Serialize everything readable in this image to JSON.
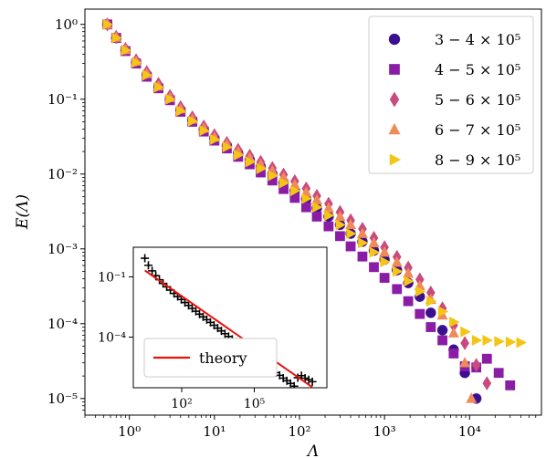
{
  "chart_data": [
    {
      "type": "scatter",
      "title": "",
      "xlabel": "Λ",
      "ylabel": "E(Λ)",
      "xscale": "log",
      "yscale": "log",
      "xlim": [
        0.3,
        70000
      ],
      "ylim": [
        6e-06,
        1.6
      ],
      "xticks": [
        {
          "value": 1,
          "label": "10⁰"
        },
        {
          "value": 10,
          "label": "10¹"
        },
        {
          "value": 100,
          "label": "10²"
        },
        {
          "value": 1000,
          "label": "10³"
        },
        {
          "value": 10000,
          "label": "10⁴"
        }
      ],
      "yticks": [
        {
          "value": 1,
          "label": "10⁰"
        },
        {
          "value": 0.1,
          "label": "10⁻¹"
        },
        {
          "value": 0.01,
          "label": "10⁻²"
        },
        {
          "value": 0.001,
          "label": "10⁻³"
        },
        {
          "value": 0.0001,
          "label": "10⁻⁴"
        },
        {
          "value": 1e-05,
          "label": "10⁻⁵"
        }
      ],
      "grid": false,
      "legend_position": "top-right",
      "series": [
        {
          "name": "3 − 4 × 10⁵",
          "marker": "circle",
          "color": "#3b0f8f",
          "x": [
            0.55,
            0.7,
            0.9,
            1.2,
            1.6,
            2.2,
            3,
            4,
            5.5,
            7.5,
            10,
            14,
            19,
            26,
            35,
            48,
            65,
            88,
            120,
            160,
            220,
            300,
            400,
            550,
            750,
            1000,
            1400,
            1900,
            2600,
            3500,
            4800,
            6500,
            8800,
            12000
          ],
          "y": [
            1.0,
            0.66,
            0.45,
            0.31,
            0.21,
            0.145,
            0.1,
            0.071,
            0.052,
            0.039,
            0.03,
            0.024,
            0.019,
            0.0155,
            0.0125,
            0.01,
            0.0078,
            0.006,
            0.0046,
            0.0035,
            0.0027,
            0.0021,
            0.0016,
            0.00125,
            0.00095,
            0.00072,
            0.00052,
            0.00035,
            0.00023,
            0.00014,
            8.2e-05,
            4.5e-05,
            2.2e-05,
            1e-05
          ]
        },
        {
          "name": "4 − 5 × 10⁵",
          "marker": "square",
          "color": "#8a1ca6",
          "x": [
            0.55,
            0.7,
            0.9,
            1.2,
            1.6,
            2.2,
            3,
            4,
            5.5,
            7.5,
            10,
            14,
            19,
            26,
            35,
            48,
            65,
            88,
            120,
            160,
            220,
            300,
            400,
            550,
            750,
            1000,
            1400,
            1900,
            2600,
            3500,
            4800,
            6500,
            8800,
            12000,
            16000,
            22000,
            30000
          ],
          "y": [
            1.0,
            0.66,
            0.44,
            0.3,
            0.2,
            0.14,
            0.097,
            0.068,
            0.05,
            0.037,
            0.028,
            0.022,
            0.017,
            0.0135,
            0.0105,
            0.0082,
            0.0063,
            0.0048,
            0.0036,
            0.0027,
            0.002,
            0.00148,
            0.00108,
            0.00079,
            0.00057,
            0.00041,
            0.00029,
            0.0002,
            0.000135,
            9e-05,
            6e-05,
            4e-05,
            2.7e-05,
            2.6e-05,
            3.4e-05,
            2.2e-05,
            1.5e-05
          ]
        },
        {
          "name": "5 − 6 × 10⁵",
          "marker": "diamond",
          "color": "#c94a7e",
          "x": [
            0.55,
            0.7,
            0.9,
            1.2,
            1.6,
            2.2,
            3,
            4,
            5.5,
            7.5,
            10,
            14,
            19,
            26,
            35,
            48,
            65,
            88,
            120,
            160,
            220,
            300,
            400,
            550,
            750,
            1000,
            1400,
            1900,
            2600,
            3500,
            4800,
            6500,
            8800,
            12000,
            16000
          ],
          "y": [
            1.0,
            0.68,
            0.47,
            0.33,
            0.23,
            0.16,
            0.11,
            0.078,
            0.057,
            0.043,
            0.033,
            0.026,
            0.021,
            0.0175,
            0.0145,
            0.012,
            0.0098,
            0.008,
            0.0064,
            0.0051,
            0.004,
            0.0031,
            0.0024,
            0.00185,
            0.0014,
            0.00105,
            0.00078,
            0.00056,
            0.00039,
            0.00026,
            0.00016,
            9.5e-05,
            5.5e-05,
            2.8e-05,
            1.6e-05
          ]
        },
        {
          "name": "6 − 7 × 10⁵",
          "marker": "triangle-up",
          "color": "#ef8a5a",
          "x": [
            0.55,
            0.7,
            0.9,
            1.2,
            1.6,
            2.2,
            3,
            4,
            5.5,
            7.5,
            10,
            14,
            19,
            26,
            35,
            48,
            65,
            88,
            120,
            160,
            220,
            300,
            400,
            550,
            750,
            1000,
            1400,
            1900,
            2600,
            3500,
            4800,
            6500,
            8800,
            10500
          ],
          "y": [
            1.0,
            0.67,
            0.46,
            0.32,
            0.22,
            0.15,
            0.105,
            0.074,
            0.054,
            0.041,
            0.031,
            0.025,
            0.02,
            0.0165,
            0.0135,
            0.011,
            0.009,
            0.0072,
            0.0057,
            0.0045,
            0.0035,
            0.0027,
            0.0021,
            0.0016,
            0.0012,
            0.0009,
            0.00066,
            0.00047,
            0.00032,
            0.00021,
            0.00013,
            7.5e-05,
            3e-05,
            1e-05
          ]
        },
        {
          "name": "8 − 9 × 10⁵",
          "marker": "triangle-right",
          "color": "#f5c516",
          "x": [
            0.55,
            0.7,
            0.9,
            1.2,
            1.6,
            2.2,
            3,
            4,
            5.5,
            7.5,
            10,
            14,
            19,
            26,
            35,
            48,
            65,
            88,
            120,
            160,
            220,
            300,
            400,
            550,
            750,
            1000,
            1400,
            1900,
            2600,
            3500,
            4800,
            6500,
            8800,
            12000,
            16000,
            22000,
            30000,
            40000
          ],
          "y": [
            1.0,
            0.66,
            0.45,
            0.31,
            0.21,
            0.145,
            0.1,
            0.07,
            0.051,
            0.038,
            0.029,
            0.023,
            0.018,
            0.0145,
            0.0118,
            0.0095,
            0.0076,
            0.006,
            0.0047,
            0.0036,
            0.0028,
            0.0021,
            0.0016,
            0.0012,
            0.0009,
            0.00067,
            0.0005,
            0.00037,
            0.00027,
            0.0002,
            0.000145,
            0.000105,
            7.8e-05,
            6e-05,
            6e-05,
            5.8e-05,
            5.7e-05,
            5.6e-05
          ]
        }
      ]
    },
    {
      "type": "scatter",
      "title": "",
      "xlabel": "",
      "ylabel": "",
      "xscale": "log",
      "yscale": "log",
      "xlim": [
        1,
        100000000
      ],
      "ylim": [
        3e-07,
        3
      ],
      "xticks": [
        {
          "value": 100,
          "label": "10²"
        },
        {
          "value": 100000,
          "label": "10⁵"
        }
      ],
      "yticks": [
        {
          "value": 0.1,
          "label": "10⁻¹"
        },
        {
          "value": 0.0001,
          "label": "10⁻⁴"
        }
      ],
      "grid": false,
      "legend_position": "bottom-left",
      "series": [
        {
          "name": "",
          "marker": "plus",
          "color": "#000000",
          "x": [
            3,
            4.2,
            6,
            8.5,
            12,
            17,
            24,
            34,
            48,
            68,
            96,
            136,
            192,
            272,
            384,
            544,
            768,
            1088,
            1536,
            2176,
            3072,
            4352,
            6144,
            8704,
            12288,
            17408,
            24576,
            34816,
            49152,
            69632,
            98304,
            139264,
            196608,
            278528,
            393216,
            557056,
            786432,
            1114112,
            1572864,
            2228224,
            3145728,
            4456448,
            6291456,
            8912896,
            12582912,
            17825792,
            25165824
          ],
          "y": [
            0.85,
            0.38,
            0.2,
            0.115,
            0.072,
            0.047,
            0.032,
            0.022,
            0.015,
            0.0105,
            0.0075,
            0.0053,
            0.0038,
            0.0027,
            0.00195,
            0.0014,
            0.00102,
            0.00074,
            0.00054,
            0.00039,
            0.00028,
            0.000205,
            0.000148,
            0.000107,
            7.8e-05,
            5.7e-05,
            4.1e-05,
            3e-05,
            2.2e-05,
            1.6e-05,
            1.15e-05,
            8.4e-06,
            6.1e-06,
            4.4e-06,
            3.2e-06,
            2.4e-06,
            1.7e-06,
            1.25e-06,
            9e-07,
            6.7e-07,
            4.9e-07,
            3.6e-07,
            9.5e-07,
            1.2e-06,
            9e-07,
            7.5e-07,
            6e-07
          ]
        },
        {
          "name": "theory",
          "marker": "line",
          "color": "#e8120c",
          "x": [
            3,
            25165824
          ],
          "y": [
            0.21,
            3.2e-07
          ]
        }
      ]
    }
  ]
}
